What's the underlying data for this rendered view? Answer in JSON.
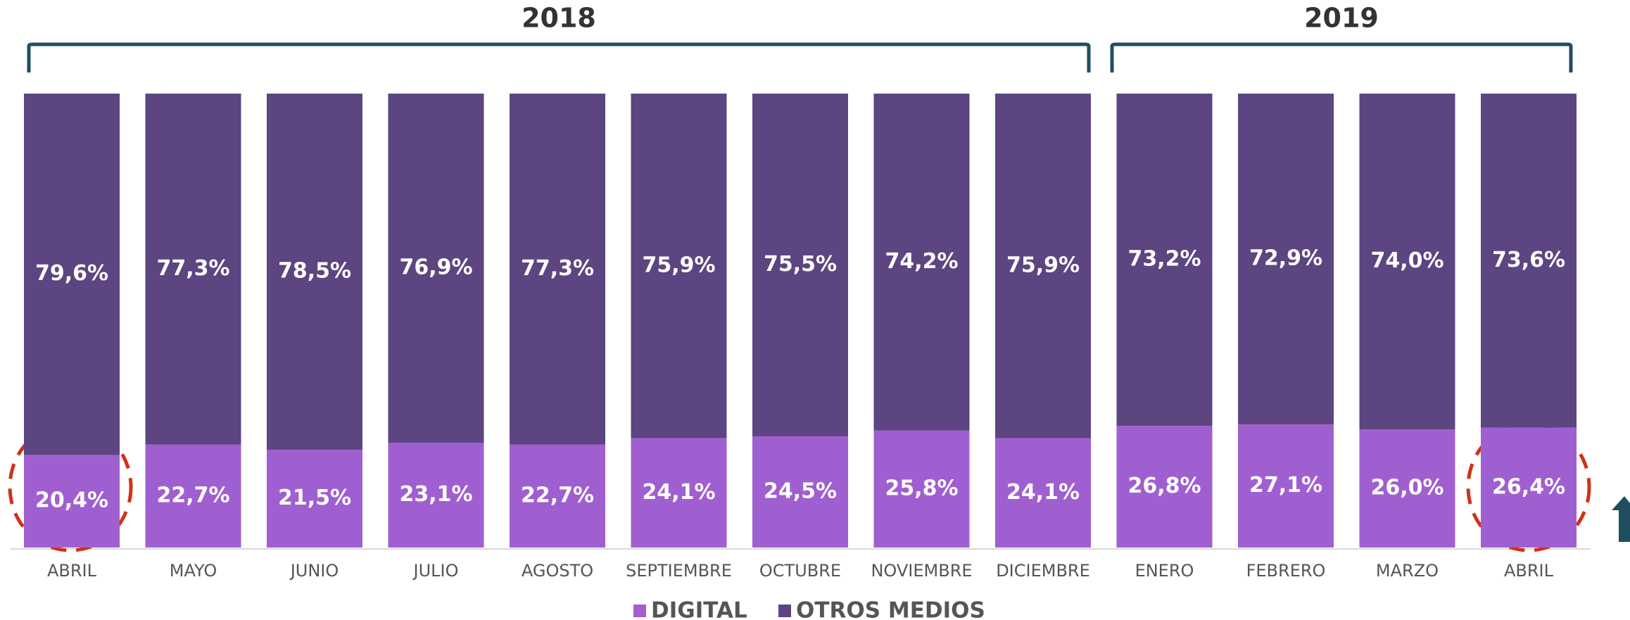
{
  "chart_data": {
    "type": "stacked_bar",
    "annotations": [
      "2018",
      "2019"
    ],
    "categories": [
      "ABRIL",
      "MAYO",
      "JUNIO",
      "JULIO",
      "AGOSTO",
      "SEPTIEMBRE",
      "OCTUBRE",
      "NOVIEMBRE",
      "DICIEMBRE",
      "ENERO",
      "FEBRERO",
      "MARZO",
      "ABRIL"
    ],
    "ylim": [
      0,
      100
    ],
    "series": [
      {
        "name": "DIGITAL",
        "color": "#a05fd0",
        "values": [
          20.4,
          22.7,
          21.5,
          23.1,
          22.7,
          24.1,
          24.5,
          25.8,
          24.1,
          26.8,
          27.1,
          26.0,
          26.4
        ],
        "value_labels": [
          "20,4%",
          "22,7%",
          "21,5%",
          "23,1%",
          "22,7%",
          "24,1%",
          "24,5%",
          "25,8%",
          "24,1%",
          "26,8%",
          "27,1%",
          "26,0%",
          "26,4%"
        ]
      },
      {
        "name": "OTROS MEDIOS",
        "color": "#5c4580",
        "values": [
          79.6,
          77.3,
          78.5,
          76.9,
          77.3,
          75.9,
          75.5,
          74.2,
          75.9,
          73.2,
          72.9,
          74.0,
          73.6
        ],
        "value_labels": [
          "79,6%",
          "77,3%",
          "78,5%",
          "76,9%",
          "77,3%",
          "75,9%",
          "75,5%",
          "74,2%",
          "75,9%",
          "73,2%",
          "72,9%",
          "74,0%",
          "73,6%"
        ]
      }
    ]
  }
}
